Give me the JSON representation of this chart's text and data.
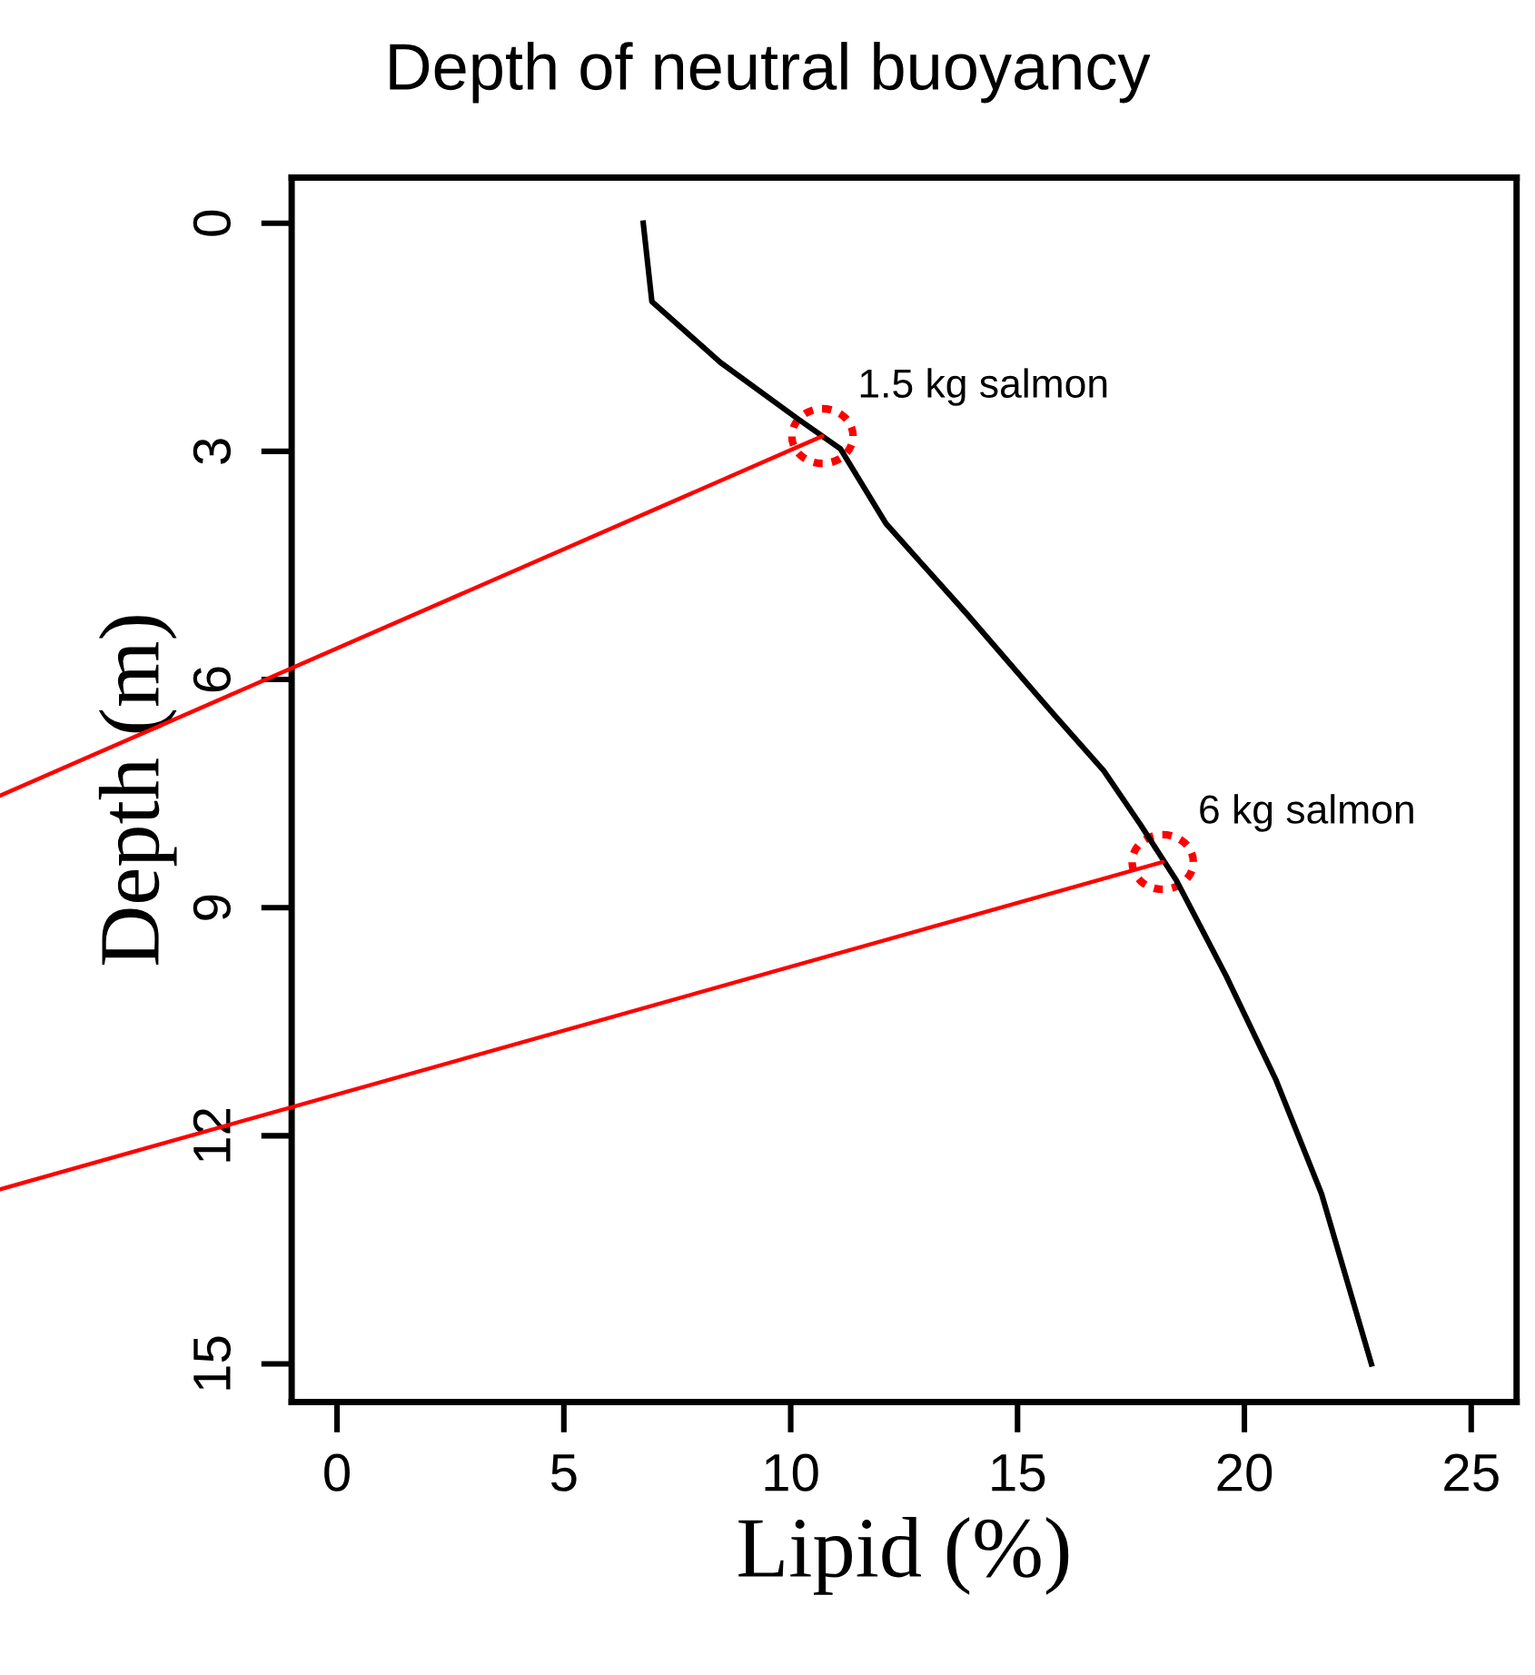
{
  "chart_data": {
    "type": "line",
    "title": "Depth of neutral buoyancy",
    "xlabel": "Lipid (%)",
    "ylabel": "Depth (m)",
    "x": [
      6.75,
      6.94,
      8.45,
      10.15,
      11.1,
      12.1,
      13.9,
      15.8,
      16.9,
      17.7,
      18.5,
      19.6,
      20.7,
      21.7,
      22.8
    ],
    "series": [
      {
        "color": "#000000",
        "values": [
          0,
          1.03,
          1.83,
          2.57,
          2.97,
          3.95,
          5.15,
          6.46,
          7.2,
          7.9,
          8.64,
          9.9,
          11.27,
          12.76,
          15.0
        ]
      }
    ],
    "xlim": [
      -1,
      26
    ],
    "ylim": [
      15.5,
      -0.6
    ],
    "xticks": [
      0,
      5,
      10,
      15,
      20,
      25
    ],
    "yticks": [
      0,
      3,
      6,
      9,
      12,
      15
    ],
    "annotations": [
      {
        "text": "1.5 kg salmon",
        "x": 10.7,
        "y": 2.8
      },
      {
        "text": "6 kg salmon",
        "x": 18.2,
        "y": 8.4
      }
    ],
    "grid": false,
    "legend": false,
    "marker": "none",
    "line_style": "solid"
  }
}
